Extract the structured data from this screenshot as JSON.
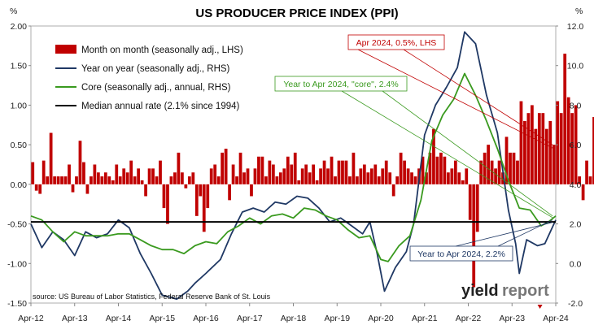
{
  "chart_data": {
    "type": "bar+line",
    "title": "US PRODUCER PRICE INDEX (PPI)",
    "left_unit": "",
    "right_unit": "%",
    "right_unit_left_label": "%",
    "left_axis": {
      "min": -1.5,
      "max": 2.0,
      "step": 0.5,
      "ticks": [
        "2.00",
        "1.50",
        "1.00",
        "0.50",
        "0.00",
        "-0.50",
        "-1.00",
        "-1.50"
      ]
    },
    "right_axis": {
      "min": -2.0,
      "max": 12.0,
      "step": 2.0,
      "ticks": [
        "12.0",
        "10.0",
        "8.0",
        "6.0",
        "4.0",
        "2.0",
        "0.0",
        "-2.0"
      ]
    },
    "x_axis": {
      "start": "2012-04",
      "end": "2024-04",
      "ticks": [
        "Apr-12",
        "Apr-13",
        "Apr-14",
        "Apr-15",
        "Apr-16",
        "Apr-17",
        "Apr-18",
        "Apr-19",
        "Apr-20",
        "Apr-21",
        "Apr-22",
        "Apr-23",
        "Apr-24"
      ]
    },
    "grid": false,
    "legend_position": "top-left",
    "series": [
      {
        "name": "Month on month (seasonally adj., LHS)",
        "kind": "bar",
        "axis": "left",
        "color": "#c00000",
        "values": [
          0.28,
          -0.08,
          -0.12,
          0.3,
          0.1,
          0.65,
          0.1,
          0.1,
          0.1,
          0.1,
          0.25,
          -0.1,
          0.1,
          0.55,
          0.28,
          -0.12,
          0.1,
          0.25,
          0.15,
          0.1,
          0.15,
          0.1,
          0.05,
          0.25,
          0.1,
          0.2,
          0.15,
          0.3,
          0.1,
          0.2,
          0.05,
          -0.15,
          0.2,
          0.2,
          0.1,
          0.3,
          -0.3,
          -0.5,
          0.1,
          0.15,
          0.4,
          0.15,
          -0.05,
          0.1,
          0.15,
          -0.4,
          -0.15,
          -0.6,
          -0.3,
          0.2,
          0.25,
          0.1,
          0.4,
          0.45,
          -0.2,
          0.25,
          0.1,
          0.4,
          0.15,
          0.2,
          -0.15,
          0.2,
          0.35,
          0.35,
          0.1,
          0.3,
          0.25,
          0.1,
          0.15,
          0.2,
          0.35,
          0.25,
          0.4,
          0.05,
          0.2,
          0.25,
          0.15,
          0.25,
          0.05,
          0.2,
          0.3,
          0.2,
          0.35,
          0.1,
          0.3,
          0.3,
          0.3,
          0.1,
          0.4,
          0.1,
          0.2,
          0.25,
          0.15,
          0.2,
          0.25,
          0.1,
          0.2,
          0.3,
          0.15,
          -0.15,
          0.1,
          0.4,
          0.3,
          0.2,
          0.15,
          0.1,
          0.2,
          0.35,
          0.15,
          0.4,
          0.7,
          0.35,
          0.4,
          0.35,
          0.15,
          0.2,
          0.3,
          0.15,
          0.05,
          0.2,
          -0.45,
          -1.3,
          -0.6,
          0.3,
          0.4,
          0.5,
          0.3,
          0.2,
          0.3,
          0.15,
          0.6,
          0.4,
          0.4,
          0.3,
          1.05,
          0.8,
          0.9,
          1.0,
          0.7,
          0.9,
          0.9,
          0.7,
          0.8,
          0.5,
          1.05,
          0.9,
          1.65,
          1.1,
          0.9,
          1.0,
          0.1,
          -0.2,
          0.3,
          0.1,
          0.85,
          0.25,
          -0.3,
          0.6,
          0.1,
          0.3,
          -0.3,
          0.35,
          0.5,
          0.2,
          0.1,
          0.3,
          0.15,
          0.1,
          0.2,
          0.1,
          -0.1,
          0.3,
          0.4,
          0.6,
          0.3,
          0.05,
          -0.15,
          0.15,
          0.3,
          0.55,
          -0.1,
          0.5,
          0.5
        ],
        "note": "approximated monthly values Apr-12 to Apr-24"
      },
      {
        "name": "Year on year (seasonally adj., RHS)",
        "kind": "line",
        "axis": "right",
        "color": "#1f3864",
        "points": [
          [
            "2012-04",
            2.0
          ],
          [
            "2012-07",
            0.8
          ],
          [
            "2012-10",
            1.6
          ],
          [
            "2013-01",
            1.2
          ],
          [
            "2013-04",
            0.4
          ],
          [
            "2013-07",
            1.6
          ],
          [
            "2013-10",
            1.3
          ],
          [
            "2014-01",
            1.5
          ],
          [
            "2014-04",
            2.2
          ],
          [
            "2014-07",
            1.8
          ],
          [
            "2014-10",
            0.5
          ],
          [
            "2015-01",
            -0.5
          ],
          [
            "2015-04",
            -1.6
          ],
          [
            "2015-08",
            -1.8
          ],
          [
            "2015-11",
            -1.4
          ],
          [
            "2016-01",
            -1.0
          ],
          [
            "2016-04",
            -0.5
          ],
          [
            "2016-08",
            0.2
          ],
          [
            "2016-11",
            1.5
          ],
          [
            "2017-02",
            2.6
          ],
          [
            "2017-05",
            2.8
          ],
          [
            "2017-08",
            2.6
          ],
          [
            "2017-11",
            3.1
          ],
          [
            "2018-02",
            3.0
          ],
          [
            "2018-05",
            3.4
          ],
          [
            "2018-08",
            3.3
          ],
          [
            "2018-11",
            2.8
          ],
          [
            "2019-02",
            2.1
          ],
          [
            "2019-05",
            2.3
          ],
          [
            "2019-08",
            1.9
          ],
          [
            "2019-11",
            1.5
          ],
          [
            "2020-01",
            2.1
          ],
          [
            "2020-03",
            0.5
          ],
          [
            "2020-05",
            -1.4
          ],
          [
            "2020-08",
            -0.2
          ],
          [
            "2020-11",
            0.6
          ],
          [
            "2021-01",
            2.0
          ],
          [
            "2021-04",
            6.5
          ],
          [
            "2021-07",
            8.0
          ],
          [
            "2021-10",
            8.9
          ],
          [
            "2022-01",
            9.9
          ],
          [
            "2022-03",
            11.7
          ],
          [
            "2022-06",
            11.1
          ],
          [
            "2022-09",
            8.5
          ],
          [
            "2022-12",
            6.6
          ],
          [
            "2023-03",
            2.7
          ],
          [
            "2023-05",
            1.0
          ],
          [
            "2023-06",
            -0.5
          ],
          [
            "2023-08",
            1.2
          ],
          [
            "2023-11",
            0.9
          ],
          [
            "2024-01",
            1.0
          ],
          [
            "2024-04",
            2.2
          ]
        ]
      },
      {
        "name": "Core (seasonally adj., annual, RHS)",
        "kind": "line",
        "axis": "right",
        "color": "#3a9a1f",
        "points": [
          [
            "2012-04",
            2.4
          ],
          [
            "2012-07",
            2.2
          ],
          [
            "2012-10",
            1.6
          ],
          [
            "2013-01",
            1.1
          ],
          [
            "2013-04",
            1.6
          ],
          [
            "2013-07",
            1.4
          ],
          [
            "2013-10",
            1.4
          ],
          [
            "2014-01",
            1.4
          ],
          [
            "2014-04",
            1.5
          ],
          [
            "2014-07",
            1.5
          ],
          [
            "2014-10",
            1.2
          ],
          [
            "2015-01",
            0.9
          ],
          [
            "2015-04",
            0.7
          ],
          [
            "2015-07",
            0.7
          ],
          [
            "2015-10",
            0.5
          ],
          [
            "2016-01",
            0.9
          ],
          [
            "2016-04",
            1.1
          ],
          [
            "2016-07",
            1.0
          ],
          [
            "2016-10",
            1.6
          ],
          [
            "2017-01",
            1.9
          ],
          [
            "2017-04",
            2.3
          ],
          [
            "2017-07",
            2.0
          ],
          [
            "2017-10",
            2.4
          ],
          [
            "2018-01",
            2.5
          ],
          [
            "2018-04",
            2.3
          ],
          [
            "2018-07",
            2.8
          ],
          [
            "2018-10",
            2.7
          ],
          [
            "2019-01",
            2.4
          ],
          [
            "2019-04",
            2.2
          ],
          [
            "2019-07",
            1.7
          ],
          [
            "2019-10",
            1.3
          ],
          [
            "2020-01",
            1.4
          ],
          [
            "2020-04",
            0.2
          ],
          [
            "2020-06",
            0.1
          ],
          [
            "2020-09",
            0.9
          ],
          [
            "2020-12",
            1.4
          ],
          [
            "2021-03",
            3.2
          ],
          [
            "2021-06",
            6.2
          ],
          [
            "2021-09",
            7.5
          ],
          [
            "2021-12",
            8.3
          ],
          [
            "2022-03",
            9.6
          ],
          [
            "2022-06",
            8.5
          ],
          [
            "2022-09",
            7.2
          ],
          [
            "2022-12",
            5.8
          ],
          [
            "2023-03",
            4.2
          ],
          [
            "2023-06",
            2.8
          ],
          [
            "2023-09",
            2.7
          ],
          [
            "2023-12",
            1.9
          ],
          [
            "2024-02",
            2.1
          ],
          [
            "2024-04",
            2.4
          ]
        ]
      },
      {
        "name": "Median annual rate (2.1% since 1994)",
        "kind": "line",
        "axis": "right",
        "color": "#000000",
        "points": [
          [
            "2012-04",
            2.1
          ],
          [
            "2024-04",
            2.1
          ]
        ]
      }
    ],
    "annotations": [
      {
        "text": "Apr 2024, 0.5%, LHS",
        "color": "#c00000"
      },
      {
        "text": "Year to Apr 2024, \"core\", 2.4%",
        "color": "#3a9a1f"
      },
      {
        "text": "Year to Apr 2024, 2.2%",
        "color": "#1f3864"
      }
    ],
    "source": "source: US Bureau of Labor Statistics, Federal Reserve Bank of St. Louis",
    "logo": {
      "text_a": "yield",
      "text_b": "report"
    }
  }
}
